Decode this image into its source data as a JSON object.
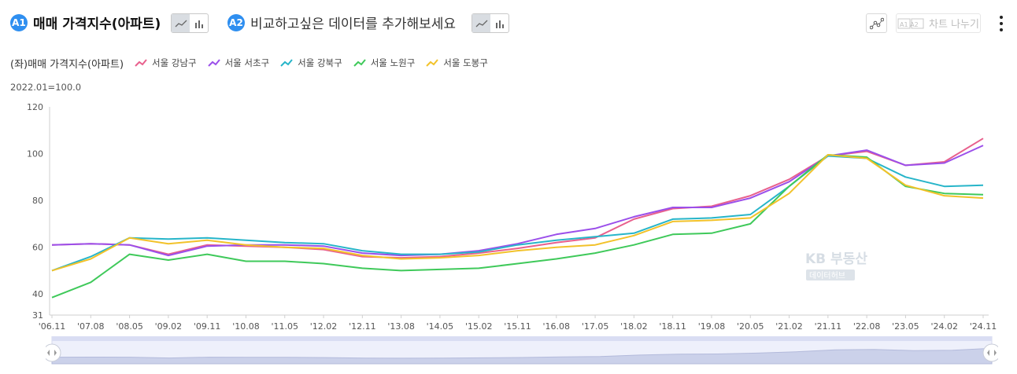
{
  "header": {
    "badge_a1": "A1",
    "title": "매매 가격지수(아파트)",
    "badge_a2": "A2",
    "compare_text": "비교하고싶은 데이터를 추가해보세요",
    "split_label": "차트 나누기",
    "split_icon_text": "A1 A2",
    "icons": [
      "line-chart-icon",
      "bar-chart-icon",
      "scatter-icon",
      "kebab-menu-icon"
    ]
  },
  "legend": {
    "axis_side": "(좌)매매 가격지수(아파트)"
  },
  "baseline_note": "2022.01=100.0",
  "watermark": {
    "line1": "KB 부동산",
    "line2": "데이터허브"
  },
  "colors": {
    "accent": "#2f8ff0",
    "gangnam": "#e8608d",
    "seocho": "#9b4fea",
    "gangbuk": "#27b5c9",
    "nowon": "#3fc95a",
    "dobong": "#f2c22a"
  },
  "chart_data": {
    "type": "line",
    "ylim": [
      31,
      120
    ],
    "yticks": [
      31,
      40,
      60,
      80,
      100,
      120
    ],
    "grid": false,
    "legend_position": "top-left",
    "x": [
      "'06.11",
      "'07.08",
      "'08.05",
      "'09.02",
      "'09.11",
      "'10.08",
      "'11.05",
      "'12.02",
      "'12.11",
      "'13.08",
      "'14.05",
      "'15.02",
      "'15.11",
      "'16.08",
      "'17.05",
      "'18.02",
      "'18.11",
      "'19.08",
      "'20.05",
      "'21.02",
      "'21.11",
      "'22.08",
      "'23.05",
      "'24.02",
      "'24.11"
    ],
    "series": [
      {
        "name": "서울 강남구",
        "color": "#e8608d",
        "values": [
          61,
          61.5,
          61,
          57,
          61,
          60.5,
          60,
          59,
          56,
          55.5,
          56,
          57.5,
          59.5,
          62,
          64,
          72,
          76.5,
          77.5,
          82,
          89,
          99,
          101,
          95,
          96.5,
          106.5
        ]
      },
      {
        "name": "서울 서초구",
        "color": "#9b4fea",
        "values": [
          61,
          61.5,
          61,
          56.5,
          60.5,
          61,
          61,
          60.5,
          57.5,
          56.5,
          57,
          58.5,
          61.5,
          65.5,
          68,
          73,
          77,
          77,
          81,
          88,
          99,
          101.5,
          95,
          96,
          103.5
        ]
      },
      {
        "name": "서울 강북구",
        "color": "#27b5c9",
        "values": [
          50,
          56,
          64,
          63.5,
          64,
          63,
          62,
          61.5,
          58.5,
          57,
          57,
          58,
          61,
          63,
          64.5,
          66,
          72,
          72.5,
          74,
          86,
          99,
          98,
          90,
          86,
          86.5
        ]
      },
      {
        "name": "서울 노원구",
        "color": "#3fc95a",
        "values": [
          38.5,
          45,
          57,
          54.5,
          57,
          54,
          54,
          53,
          51,
          50,
          50.5,
          51,
          53,
          55,
          57.5,
          61,
          65.5,
          66,
          70,
          86,
          99.5,
          98.5,
          86,
          83,
          82.5
        ]
      },
      {
        "name": "서울 도봉구",
        "color": "#f2c22a",
        "values": [
          50,
          55,
          64,
          61.5,
          63,
          61,
          60,
          59.5,
          56.5,
          55,
          55.5,
          56.5,
          58.5,
          60,
          61,
          65,
          71,
          71.5,
          72.5,
          83,
          99.5,
          98,
          86.5,
          82,
          81
        ]
      }
    ]
  }
}
